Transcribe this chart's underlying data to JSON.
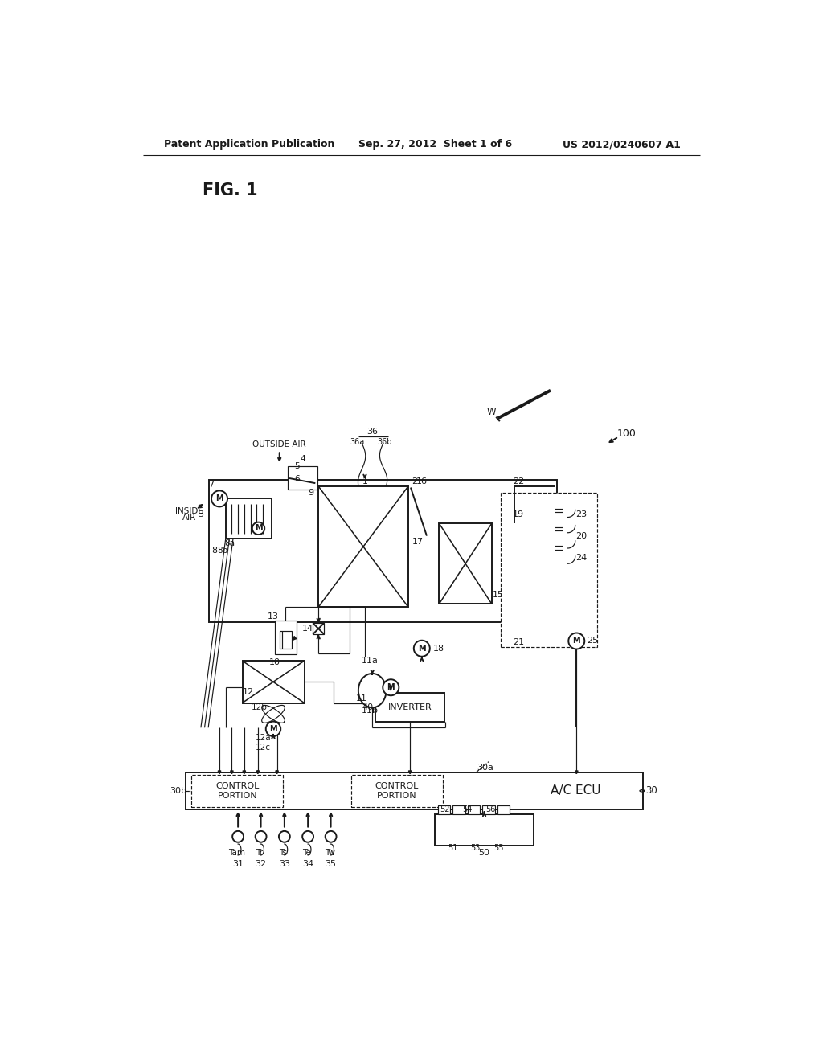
{
  "bg": "#ffffff",
  "lc": "#1a1a1a",
  "header_left": "Patent Application Publication",
  "header_mid": "Sep. 27, 2012  Sheet 1 of 6",
  "header_right": "US 2012/0240607 A1",
  "fig_label": "FIG. 1"
}
